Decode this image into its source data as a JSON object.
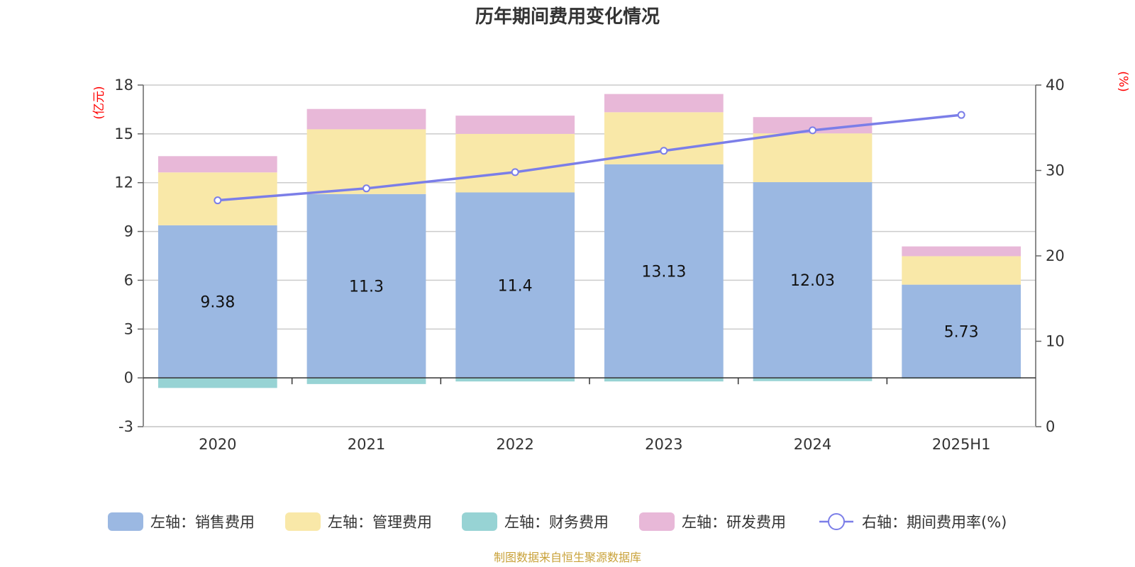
{
  "chart_data": {
    "type": "bar",
    "title": "历年期间费用变化情况",
    "left_axis_unit": "(亿元)",
    "right_axis_unit": "(%)",
    "categories": [
      "2020",
      "2021",
      "2022",
      "2023",
      "2024",
      "2025H1"
    ],
    "left_axis": {
      "min": -3,
      "max": 18,
      "ticks": [
        -3,
        0,
        3,
        6,
        9,
        12,
        15,
        18
      ]
    },
    "right_axis": {
      "min": 0,
      "max": 40,
      "ticks": [
        0,
        10,
        20,
        30,
        40
      ]
    },
    "stacked": true,
    "grid": true,
    "legend_position": "bottom",
    "series": [
      {
        "name": "左轴：销售费用",
        "axis": "left",
        "kind": "bar",
        "color": "#9bb8e2",
        "values": [
          9.38,
          11.3,
          11.4,
          13.13,
          12.03,
          5.73
        ],
        "labels": [
          "9.38",
          "11.3",
          "11.4",
          "13.13",
          "12.03",
          "5.73"
        ]
      },
      {
        "name": "左轴：管理费用",
        "axis": "left",
        "kind": "bar",
        "color": "#f9e8a8",
        "values": [
          3.25,
          3.98,
          3.6,
          3.2,
          3.0,
          1.75
        ]
      },
      {
        "name": "左轴：财务费用",
        "axis": "left",
        "kind": "bar",
        "color": "#97d3d4",
        "values": [
          -0.62,
          -0.38,
          -0.22,
          -0.22,
          -0.2,
          -0.05
        ]
      },
      {
        "name": "左轴：研发费用",
        "axis": "left",
        "kind": "bar",
        "color": "#e8b8d8",
        "values": [
          1.0,
          1.25,
          1.12,
          1.12,
          1.0,
          0.6
        ]
      },
      {
        "name": "右轴：期间费用率(%)",
        "axis": "right",
        "kind": "line",
        "color": "#7b7ee8",
        "values": [
          26.5,
          27.9,
          29.8,
          32.3,
          34.7,
          36.5
        ]
      }
    ]
  },
  "source": "制图数据来自恒生聚源数据库"
}
